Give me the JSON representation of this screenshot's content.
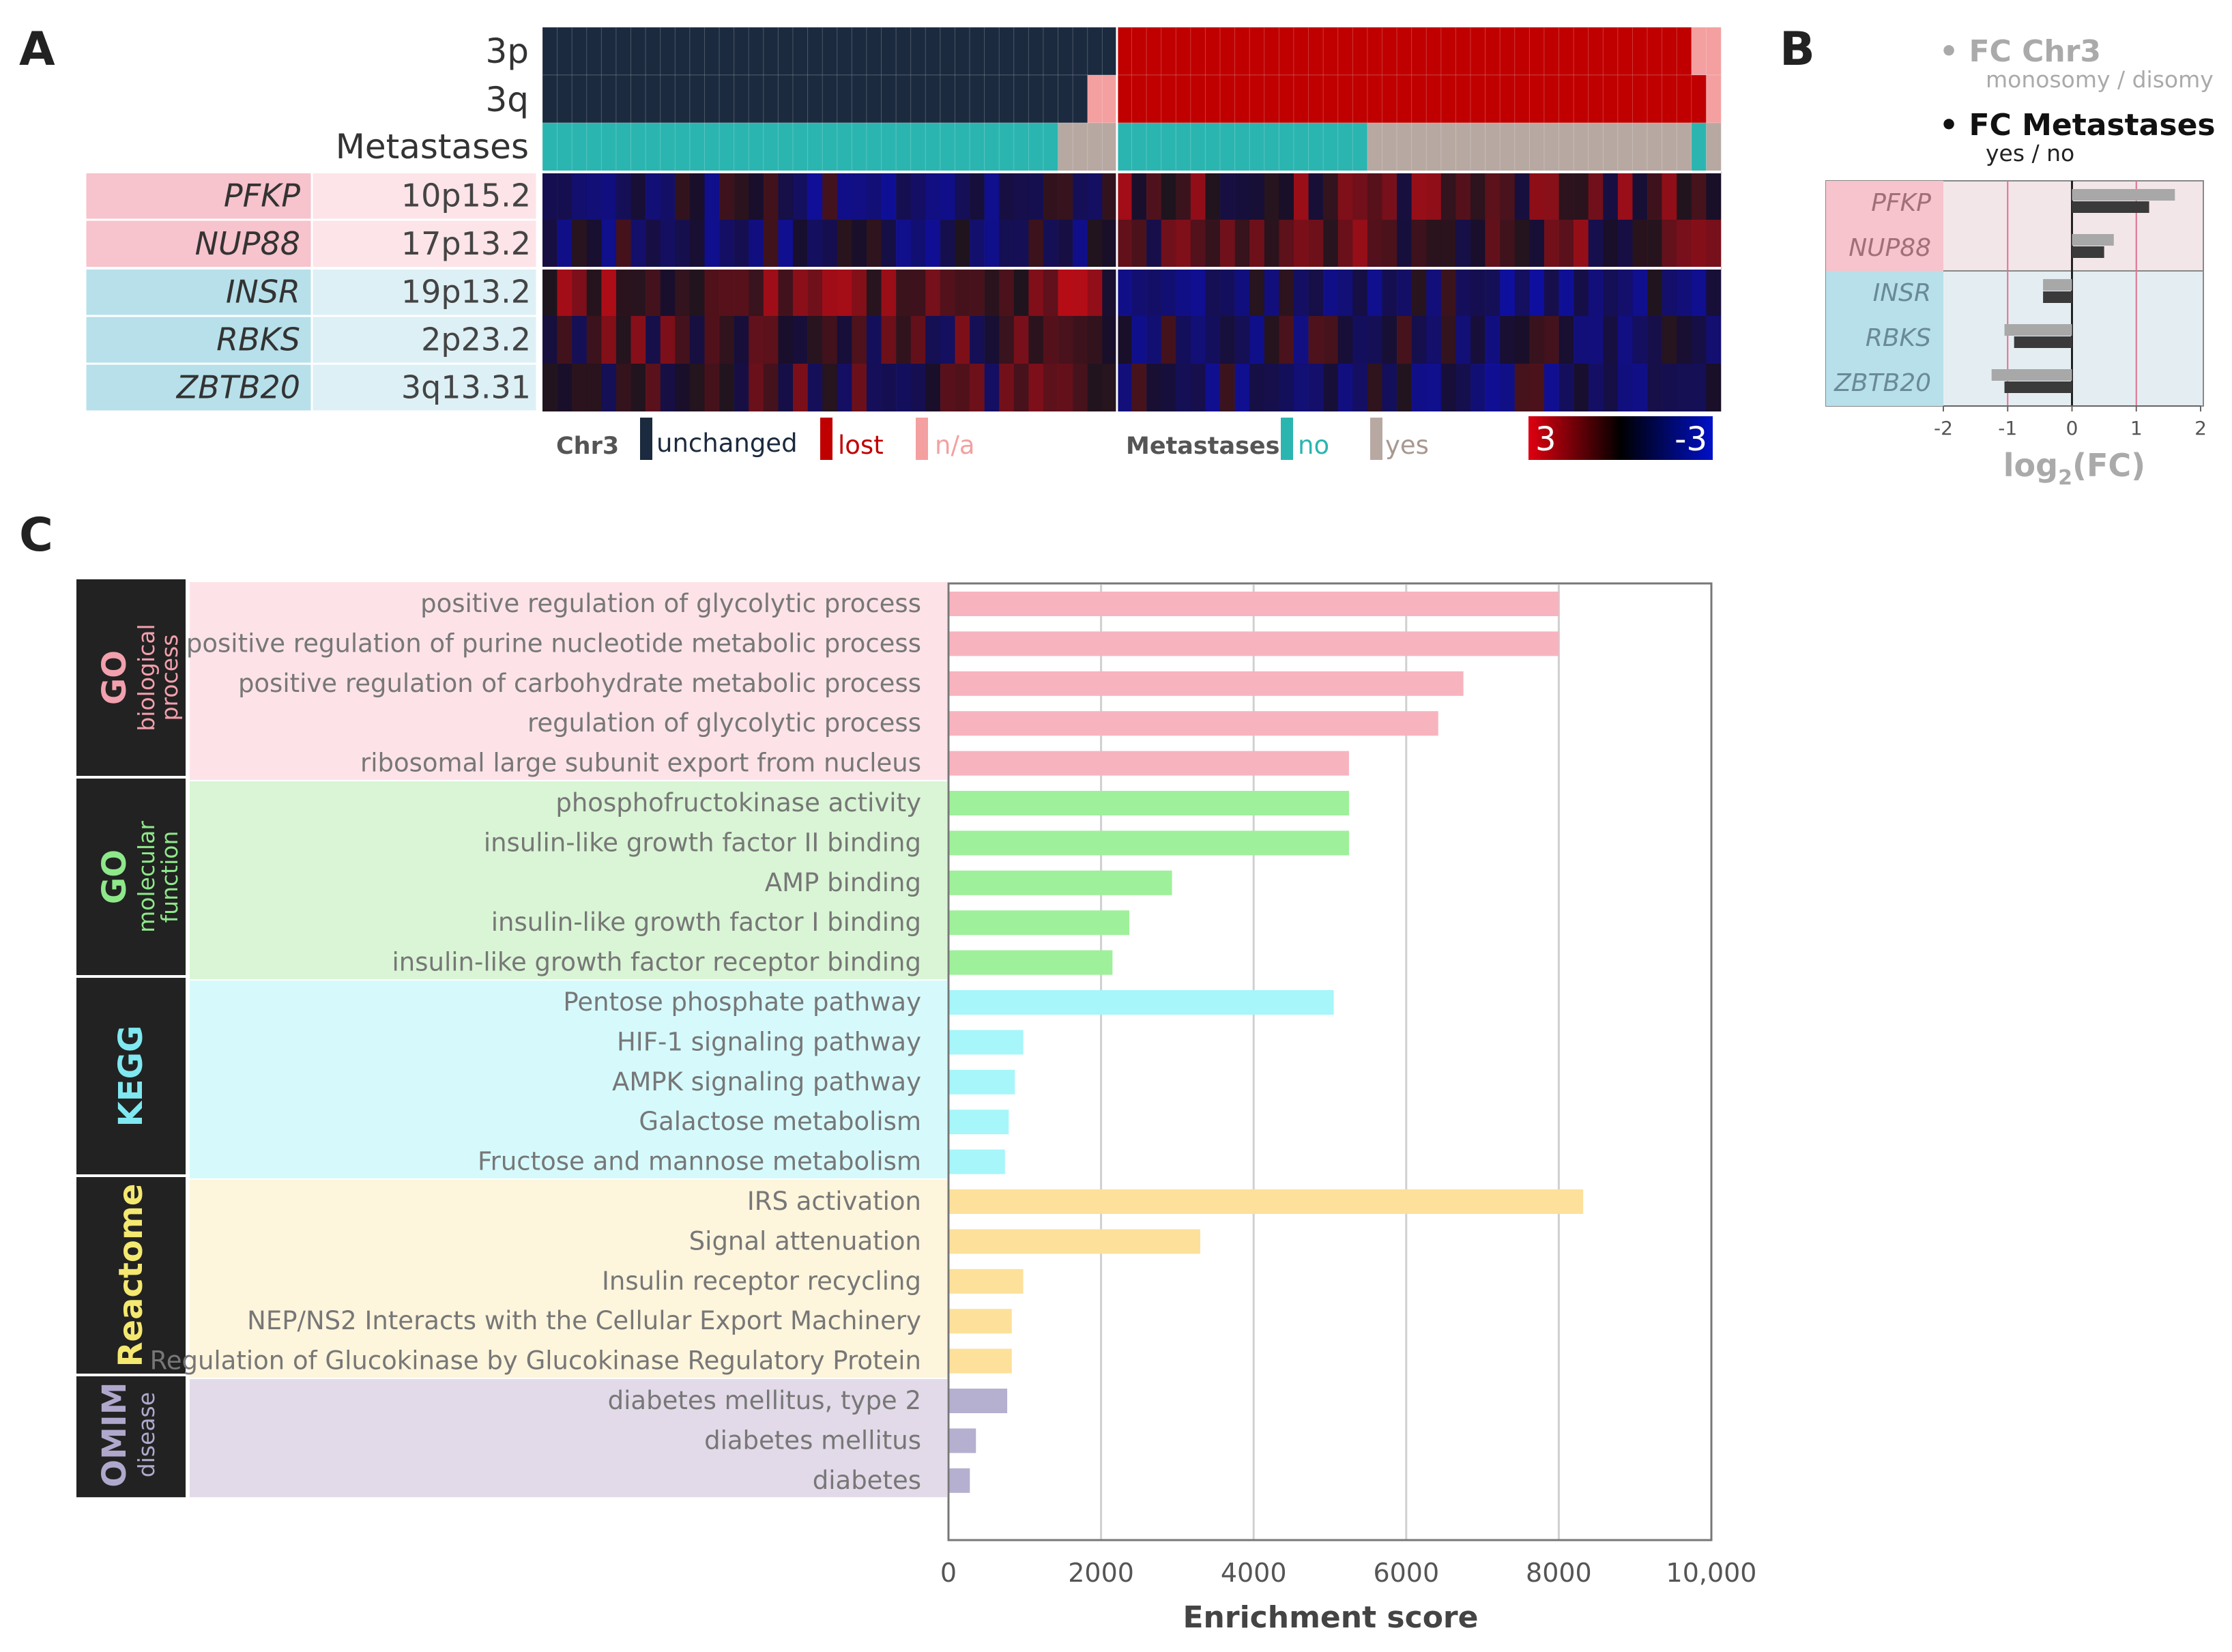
{
  "panel_labels": [
    "A",
    "B",
    "C"
  ],
  "colors": {
    "unchanged": "#1b2a3e",
    "lost": "#c00000",
    "na": "#f4a0a0",
    "meta_no": "#2bb5b0",
    "meta_yes": "#b8a8a2",
    "gene_up_dark": "#f7c3cc",
    "gene_up_light": "#fde4e8",
    "gene_down_dark": "#b7e0ea",
    "gene_down_light": "#ddf0f5",
    "bar_chr3": "#a8a8a8",
    "bar_met": "#3a3a3a"
  },
  "panel_a": {
    "annotation_rows": [
      "3p",
      "3q",
      "Metastases"
    ],
    "genes": [
      {
        "name": "PFKP",
        "locus": "10p15.2",
        "group": "up"
      },
      {
        "name": "NUP88",
        "locus": "17p13.2",
        "group": "up"
      },
      {
        "name": "INSR",
        "locus": "19p13.2",
        "group": "down"
      },
      {
        "name": "RBKS",
        "locus": "2p23.2",
        "group": "down"
      },
      {
        "name": "ZBTB20",
        "locus": "3q13.31",
        "group": "down"
      }
    ],
    "legend": {
      "chr3_title": "Chr3",
      "unchanged": "unchanged",
      "lost": "lost",
      "na": "n/a",
      "meta_title": "Metastases",
      "no": "no",
      "yes": "yes",
      "scale_high": "3",
      "scale_low": "-3"
    }
  },
  "panel_b": {
    "legend_chr3": "• FC Chr3",
    "legend_chr3_sub": "monosomy / disomy",
    "legend_met": "• FC Metastases",
    "legend_met_sub": "yes / no",
    "xlabel": "log",
    "xlabel_sub": "2",
    "xlabel_tail": "(FC)"
  },
  "chart_data": [
    {
      "type": "heatmap",
      "title": "A",
      "rows": [
        "3p",
        "3q",
        "Metastases",
        "PFKP",
        "NUP88",
        "INSR",
        "RBKS",
        "ZBTB20"
      ],
      "samples": 80,
      "color_scale": [
        3,
        -3
      ],
      "groups": [
        {
          "name": "Chr3 unchanged",
          "samples": 39
        },
        {
          "name": "Chr3 lost",
          "samples": 41
        }
      ]
    },
    {
      "type": "bar",
      "title": "B",
      "orientation": "horizontal",
      "categories": [
        "PFKP",
        "NUP88",
        "INSR",
        "RBKS",
        "ZBTB20"
      ],
      "series": [
        {
          "name": "FC Chr3",
          "values": [
            1.6,
            0.65,
            -0.45,
            -1.05,
            -1.25
          ]
        },
        {
          "name": "FC Metastases",
          "values": [
            1.2,
            0.5,
            -0.45,
            -0.9,
            -1.05
          ]
        }
      ],
      "xlabel": "log2(FC)",
      "xlim": [
        -2,
        2
      ],
      "xticks": [
        -2,
        -1,
        0,
        1,
        2
      ]
    },
    {
      "type": "bar",
      "title": "C",
      "orientation": "horizontal",
      "xlabel": "Enrichment score",
      "xlim": [
        0,
        10000
      ],
      "xticks": [
        0,
        2000,
        4000,
        6000,
        8000,
        10000
      ],
      "xtick_labels": [
        "0",
        "2000",
        "4000",
        "6000",
        "8000",
        "10,000"
      ],
      "groups": [
        {
          "label": "GO",
          "sublabel": "biological process",
          "color": "#f8b4be",
          "bg": "#fde3e8",
          "text": "#f2a0ad",
          "terms": [
            {
              "term": "positive regulation of glycolytic process",
              "value": 8000
            },
            {
              "term": "positive regulation of purine nucleotide metabolic process",
              "value": 8000
            },
            {
              "term": "positive regulation of carbohydrate metabolic process",
              "value": 6750
            },
            {
              "term": "regulation of glycolytic process",
              "value": 6420
            },
            {
              "term": "ribosomal large subunit export from nucleus",
              "value": 5250
            }
          ]
        },
        {
          "label": "GO",
          "sublabel": "molecular function",
          "color": "#9ef09a",
          "bg": "#d9f5d5",
          "text": "#8ee88a",
          "terms": [
            {
              "term": "phosphofructokinase activity",
              "value": 5250
            },
            {
              "term": "insulin-like growth factor II binding",
              "value": 5250
            },
            {
              "term": "AMP binding",
              "value": 2930
            },
            {
              "term": "insulin-like growth factor I binding",
              "value": 2370
            },
            {
              "term": "insulin-like growth factor receptor binding",
              "value": 2150
            }
          ]
        },
        {
          "label": "KEGG",
          "sublabel": "",
          "color": "#a6f6fa",
          "bg": "#d6fafc",
          "text": "#7fe8f0",
          "terms": [
            {
              "term": "Pentose phosphate pathway",
              "value": 5050
            },
            {
              "term": "HIF-1 signaling pathway",
              "value": 980
            },
            {
              "term": "AMPK signaling pathway",
              "value": 870
            },
            {
              "term": "Galactose metabolism",
              "value": 790
            },
            {
              "term": "Fructose and mannose metabolism",
              "value": 740
            }
          ]
        },
        {
          "label": "Reactome",
          "sublabel": "",
          "color": "#fde09a",
          "bg": "#fdf5dc",
          "text": "#f4e870",
          "terms": [
            {
              "term": "IRS activation",
              "value": 8320
            },
            {
              "term": "Signal attenuation",
              "value": 3300
            },
            {
              "term": "Insulin receptor recycling",
              "value": 980
            },
            {
              "term": "NEP/NS2 Interacts with the Cellular Export Machinery",
              "value": 830
            },
            {
              "term": "Regulation of Glucokinase by Glucokinase Regulatory Protein",
              "value": 830
            }
          ]
        },
        {
          "label": "OMIM",
          "sublabel": "disease",
          "color": "#b5b0d0",
          "bg": "#e2dae8",
          "text": "#b0a8cc",
          "terms": [
            {
              "term": "diabetes mellitus, type 2",
              "value": 770
            },
            {
              "term": "diabetes mellitus",
              "value": 360
            },
            {
              "term": "diabetes",
              "value": 280
            }
          ]
        }
      ]
    }
  ]
}
